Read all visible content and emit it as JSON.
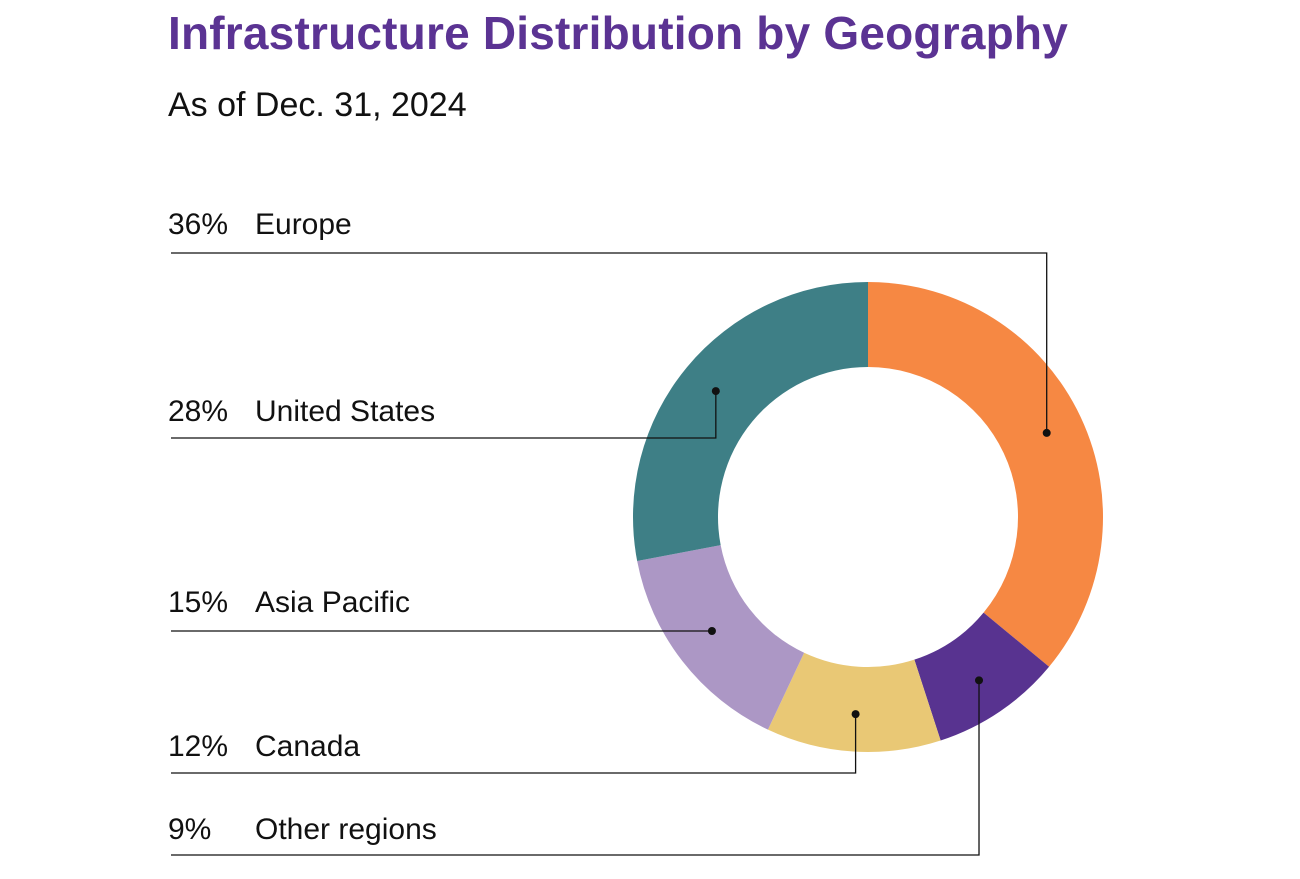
{
  "header": {
    "title": "Infrastructure Distribution by Geography",
    "subtitle": "As of Dec. 31, 2024"
  },
  "chart_data": {
    "type": "pie",
    "variant": "donut",
    "title": "Infrastructure Distribution by Geography",
    "subtitle": "As of Dec. 31, 2024",
    "slices": [
      {
        "label": "Europe",
        "value": 36,
        "value_label": "36%",
        "color": "#f68843"
      },
      {
        "label": "Other regions",
        "value": 9,
        "value_label": "9%",
        "color": "#583390"
      },
      {
        "label": "Canada",
        "value": 12,
        "value_label": "12%",
        "color": "#e9c875"
      },
      {
        "label": "Asia Pacific",
        "value": 15,
        "value_label": "15%",
        "color": "#ac97c5"
      },
      {
        "label": "United States",
        "value": 28,
        "value_label": "28%",
        "color": "#3e7f86"
      }
    ],
    "start": "12 o'clock",
    "direction": "clockwise",
    "legend": "left-aligned callout labels with leader lines",
    "callout_order": [
      "Europe",
      "United States",
      "Asia Pacific",
      "Canada",
      "Other regions"
    ]
  }
}
